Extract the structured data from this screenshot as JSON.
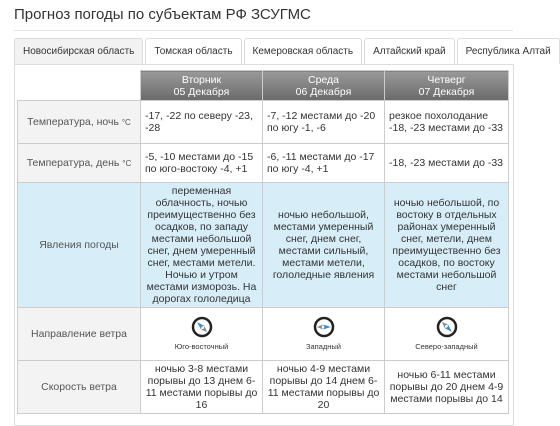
{
  "header": {
    "title": "Прогноз погоды по субъектам РФ ЗСУГМС"
  },
  "tabs": [
    "Новосибирская область",
    "Томская область",
    "Кемеровская область",
    "Алтайский край",
    "Республика Алтай"
  ],
  "table": {
    "days": [
      {
        "weekday": "Вторник",
        "date": "05 Декабря"
      },
      {
        "weekday": "Среда",
        "date": "06 Декабря"
      },
      {
        "weekday": "Четверг",
        "date": "07 Декабря"
      }
    ],
    "rows": [
      {
        "label": "Температура, ночь",
        "unit": "°C",
        "cells": [
          "-17, -22 по северу -23, -28",
          "-7, -12 местами до -20 по югу -1, -6",
          "резкое похолодание -18, -23 местами до -33"
        ]
      },
      {
        "label": "Температура, день",
        "unit": "°C",
        "cells": [
          "-5, -10 местами до -15 по юго-востоку -4, +1",
          "-6, -11 местами до -17 по югу -4, +1",
          "-18, -23 местами до -33"
        ]
      },
      {
        "label": "Явления погоды",
        "cells": [
          "переменная облачность, ночью преимущественно без осадков, по западу местами небольшой снег, днем умеренный снег, местами метели. Ночью и утром местами изморозь. На дорогах гололедица",
          "ночью небольшой, местами умеренный снег, днем снег, местами сильный, местами метели, гололедные явления",
          "ночью небольшой, по востоку в отдельных районах умеренный снег, метели, днем преимущественно без осадков, по востоку местами небольшой снег"
        ]
      },
      {
        "label": "Направление ветра",
        "cells": [
          "Юго-восточный",
          "Западный",
          "Северо-западный"
        ]
      },
      {
        "label": "Скорость ветра",
        "cells": [
          "ночью 3-8 местами порывы до 13 днем 6-11 местами порывы до 16",
          "ночью 4-9 местами порывы до 14 днем 6-11 местами порывы до 20",
          "ночью 6-11 местами порывы до 20 днем 4-9 местами порывы до 14"
        ]
      }
    ]
  }
}
